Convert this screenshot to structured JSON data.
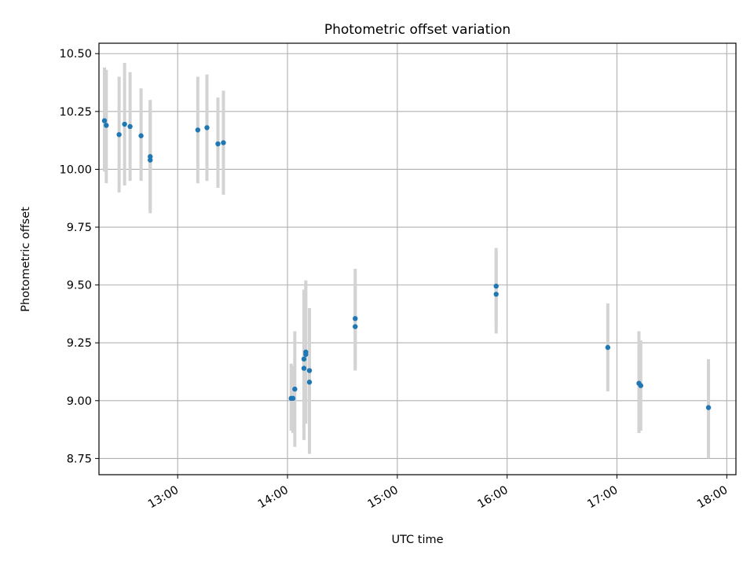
{
  "chart_data": {
    "type": "scatter",
    "title": "Photometric offset variation",
    "xlabel": "UTC time",
    "ylabel": "Photometric offset",
    "xlim": [
      "12:17",
      "18:05"
    ],
    "ylim": [
      8.68,
      10.545
    ],
    "x_ticks": [
      "13:00",
      "14:00",
      "15:00",
      "16:00",
      "17:00",
      "18:00"
    ],
    "y_ticks": [
      "8.75",
      "9.00",
      "9.25",
      "9.50",
      "9.75",
      "10.00",
      "10.25",
      "10.50"
    ],
    "grid": true,
    "colors": {
      "points": "#1f77b4",
      "errorbars": "#d3d3d3",
      "grid": "#b0b0b0"
    },
    "points": [
      {
        "x": "12:20",
        "y": 10.21,
        "lo": 9.99,
        "hi": 10.44
      },
      {
        "x": "12:21",
        "y": 10.19,
        "lo": 9.94,
        "hi": 10.43
      },
      {
        "x": "12:28",
        "y": 10.15,
        "lo": 9.9,
        "hi": 10.4
      },
      {
        "x": "12:31",
        "y": 10.195,
        "lo": 9.93,
        "hi": 10.46
      },
      {
        "x": "12:34",
        "y": 10.185,
        "lo": 9.95,
        "hi": 10.42
      },
      {
        "x": "12:40",
        "y": 10.145,
        "lo": 9.95,
        "hi": 10.35
      },
      {
        "x": "12:45",
        "y": 10.04,
        "lo": 9.81,
        "hi": 10.29
      },
      {
        "x": "12:45",
        "y": 10.055,
        "lo": 9.82,
        "hi": 10.3
      },
      {
        "x": "13:11",
        "y": 10.17,
        "lo": 9.94,
        "hi": 10.4
      },
      {
        "x": "13:16",
        "y": 10.18,
        "lo": 9.95,
        "hi": 10.41
      },
      {
        "x": "13:22",
        "y": 10.11,
        "lo": 9.92,
        "hi": 10.31
      },
      {
        "x": "13:25",
        "y": 10.115,
        "lo": 9.89,
        "hi": 10.34
      },
      {
        "x": "14:02",
        "y": 9.01,
        "lo": 8.87,
        "hi": 9.16
      },
      {
        "x": "14:03",
        "y": 9.01,
        "lo": 8.86,
        "hi": 9.15
      },
      {
        "x": "14:04",
        "y": 9.05,
        "lo": 8.8,
        "hi": 9.3
      },
      {
        "x": "14:09",
        "y": 9.18,
        "lo": 8.84,
        "hi": 9.48
      },
      {
        "x": "14:09",
        "y": 9.14,
        "lo": 8.83,
        "hi": 9.45
      },
      {
        "x": "14:10",
        "y": 9.21,
        "lo": 8.91,
        "hi": 9.52
      },
      {
        "x": "14:10",
        "y": 9.2,
        "lo": 8.9,
        "hi": 9.51
      },
      {
        "x": "14:12",
        "y": 9.13,
        "lo": 8.89,
        "hi": 9.38
      },
      {
        "x": "14:12",
        "y": 9.08,
        "lo": 8.77,
        "hi": 9.4
      },
      {
        "x": "14:37",
        "y": 9.355,
        "lo": 9.14,
        "hi": 9.57
      },
      {
        "x": "14:37",
        "y": 9.32,
        "lo": 9.13,
        "hi": 9.51
      },
      {
        "x": "15:54",
        "y": 9.495,
        "lo": 9.33,
        "hi": 9.66
      },
      {
        "x": "15:54",
        "y": 9.46,
        "lo": 9.29,
        "hi": 9.64
      },
      {
        "x": "16:55",
        "y": 9.23,
        "lo": 9.04,
        "hi": 9.42
      },
      {
        "x": "17:12",
        "y": 9.075,
        "lo": 8.86,
        "hi": 9.3
      },
      {
        "x": "17:13",
        "y": 9.065,
        "lo": 8.87,
        "hi": 9.26
      },
      {
        "x": "17:50",
        "y": 8.97,
        "lo": 8.75,
        "hi": 9.18
      }
    ]
  }
}
